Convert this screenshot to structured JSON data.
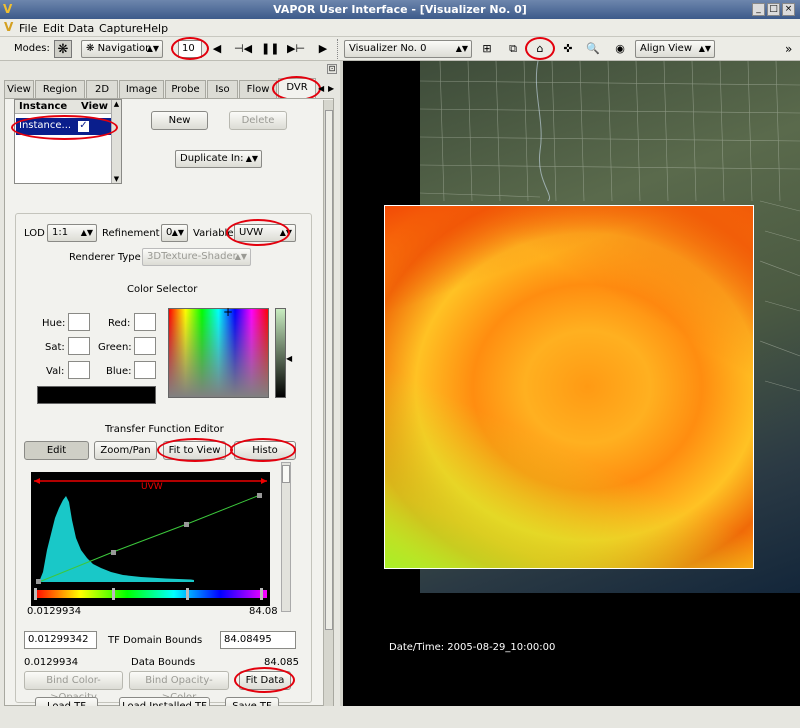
{
  "window": {
    "title": "VAPOR User Interface - [Visualizer No. 0]",
    "buttons": [
      "_",
      "□",
      "×"
    ]
  },
  "menu": [
    "File",
    "Edit",
    "Data",
    "Capture",
    "Help"
  ],
  "toolbar": {
    "modes_label": "Modes:",
    "mode_select": "Navigation",
    "frame_step": "10",
    "visualizer_select": "Visualizer No. 0",
    "align_view": "Align View",
    "overflow": "»"
  },
  "tabs": [
    "View",
    "Region",
    "2D",
    "Image",
    "Probe",
    "Iso",
    "Flow",
    "DVR"
  ],
  "instance_table": {
    "headers": [
      "Instance",
      "View"
    ],
    "row_label": "Instance..."
  },
  "buttons": {
    "new": "New",
    "delete": "Delete",
    "duplicate": "Duplicate In:"
  },
  "render_settings": {
    "lod_label": "LOD",
    "lod_value": "1:1",
    "refinement_label": "Refinement",
    "refinement_value": "0",
    "variable_label": "Variable",
    "variable_value": "UVW",
    "renderer_type_label": "Renderer Type",
    "renderer_type_value": "3DTexture-Shader"
  },
  "color_selector": {
    "title": "Color Selector",
    "hue": "Hue:",
    "sat": "Sat:",
    "val": "Val:",
    "red": "Red:",
    "green": "Green:",
    "blue": "Blue:",
    "current_color": "#000000"
  },
  "tf_editor": {
    "title": "Transfer Function Editor",
    "edit": "Edit",
    "zoom_pan": "Zoom/Pan",
    "fit_to_view": "Fit to View",
    "histo": "Histo",
    "variable_label": "UVW",
    "axis_min": "0.0129934",
    "axis_max": "84.08",
    "domain_min": "0.01299342",
    "domain_max": "84.08495",
    "domain_label": "TF Domain Bounds",
    "data_min": "0.0129934",
    "data_max": "84.085",
    "data_label": "Data Bounds",
    "bind_color_opacity": "Bind Color->Opacity",
    "bind_opacity_color": "Bind Opacity->Color",
    "fit_data": "Fit Data",
    "load_tf": "Load TF",
    "load_installed_tf": "Load Installed TF",
    "save_tf": "Save TF"
  },
  "viewer": {
    "datetime": "Date/Time: 2005-08-29_10:00:00"
  },
  "colors": {
    "accent_red": "#e3000d",
    "selection_blue": "#0a1e8c",
    "histogram": "#19c8c8",
    "opacity_line": "#3cc83c"
  }
}
